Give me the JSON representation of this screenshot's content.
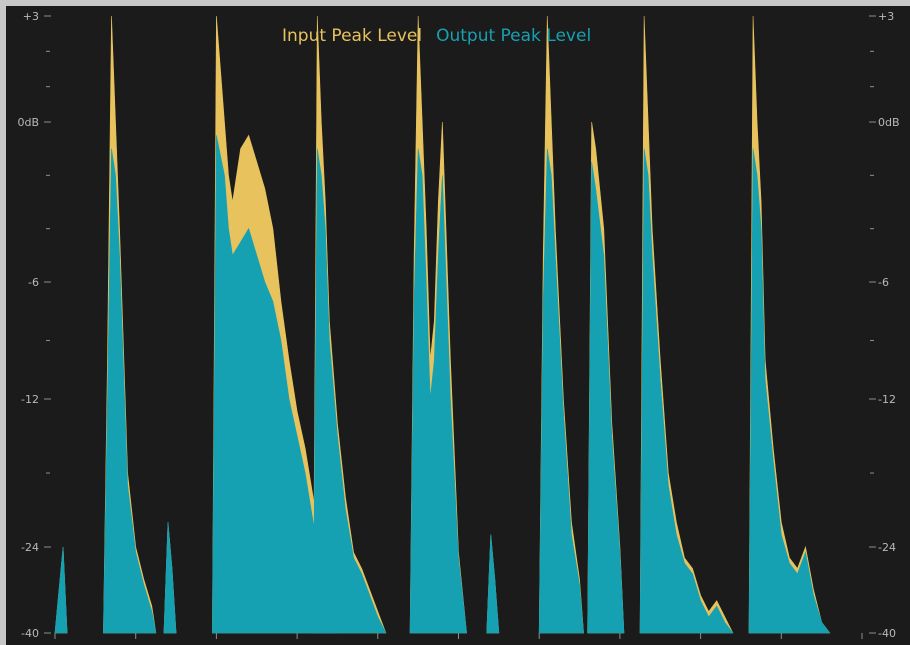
{
  "colors": {
    "background": "#1b1b1b",
    "frame": "#c8c8c8",
    "input": "#e8c25c",
    "output": "#16a1b3",
    "scale_text": "#b9b9b9"
  },
  "legend": {
    "input_label": "Input Peak Level",
    "output_label": "Output Peak Level"
  },
  "chart_data": {
    "type": "area",
    "ylabel": "",
    "xlabel": "",
    "ylim": [
      -40,
      3
    ],
    "y_scale": "meter",
    "yticks": [
      {
        "value": 3,
        "label": "+3"
      },
      {
        "value": 0,
        "label": "0dB"
      },
      {
        "value": -6,
        "label": "-6"
      },
      {
        "value": -12,
        "label": "-12"
      },
      {
        "value": -24,
        "label": "-24"
      },
      {
        "value": -40,
        "label": "-40"
      }
    ],
    "series": [
      {
        "name": "Input Peak Level",
        "color": "#e8c25c",
        "points": [
          [
            0.0,
            -40
          ],
          [
            0.01,
            -24
          ],
          [
            0.015,
            -40
          ],
          [
            0.06,
            -40
          ],
          [
            0.065,
            -10
          ],
          [
            0.07,
            3
          ],
          [
            0.075,
            0
          ],
          [
            0.08,
            -4
          ],
          [
            0.09,
            -18
          ],
          [
            0.1,
            -24
          ],
          [
            0.11,
            -30
          ],
          [
            0.12,
            -35
          ],
          [
            0.125,
            -40
          ],
          [
            0.135,
            -40
          ],
          [
            0.14,
            -22
          ],
          [
            0.145,
            -28
          ],
          [
            0.15,
            -40
          ],
          [
            0.195,
            -40
          ],
          [
            0.2,
            3
          ],
          [
            0.21,
            0
          ],
          [
            0.215,
            -2
          ],
          [
            0.22,
            -3
          ],
          [
            0.23,
            -1
          ],
          [
            0.24,
            -0.5
          ],
          [
            0.25,
            -1.5
          ],
          [
            0.26,
            -2.5
          ],
          [
            0.27,
            -4
          ],
          [
            0.28,
            -7
          ],
          [
            0.29,
            -10
          ],
          [
            0.3,
            -13
          ],
          [
            0.31,
            -16
          ],
          [
            0.32,
            -20
          ],
          [
            0.33,
            -25
          ],
          [
            0.34,
            -30
          ],
          [
            0.35,
            -40
          ],
          [
            0.32,
            -40
          ],
          [
            0.325,
            3
          ],
          [
            0.33,
            0
          ],
          [
            0.335,
            -3
          ],
          [
            0.34,
            -8
          ],
          [
            0.35,
            -14
          ],
          [
            0.36,
            -20
          ],
          [
            0.37,
            -25
          ],
          [
            0.38,
            -28
          ],
          [
            0.39,
            -32
          ],
          [
            0.4,
            -36
          ],
          [
            0.41,
            -40
          ],
          [
            0.44,
            -40
          ],
          [
            0.445,
            -5
          ],
          [
            0.45,
            3
          ],
          [
            0.455,
            0
          ],
          [
            0.46,
            -4
          ],
          [
            0.465,
            -10
          ],
          [
            0.47,
            -8
          ],
          [
            0.475,
            -3
          ],
          [
            0.48,
            0
          ],
          [
            0.49,
            -10
          ],
          [
            0.5,
            -25
          ],
          [
            0.51,
            -40
          ],
          [
            0.535,
            -40
          ],
          [
            0.54,
            -23
          ],
          [
            0.545,
            -30
          ],
          [
            0.55,
            -40
          ],
          [
            0.6,
            -40
          ],
          [
            0.605,
            -5
          ],
          [
            0.61,
            3
          ],
          [
            0.615,
            0
          ],
          [
            0.62,
            -4
          ],
          [
            0.63,
            -12
          ],
          [
            0.64,
            -22
          ],
          [
            0.65,
            -30
          ],
          [
            0.655,
            -40
          ],
          [
            0.66,
            -40
          ],
          [
            0.665,
            0
          ],
          [
            0.67,
            -1
          ],
          [
            0.68,
            -4
          ],
          [
            0.69,
            -14
          ],
          [
            0.7,
            -24
          ],
          [
            0.705,
            -40
          ],
          [
            0.725,
            -40
          ],
          [
            0.73,
            3
          ],
          [
            0.735,
            0
          ],
          [
            0.74,
            -4
          ],
          [
            0.75,
            -10
          ],
          [
            0.76,
            -18
          ],
          [
            0.77,
            -22
          ],
          [
            0.78,
            -26
          ],
          [
            0.79,
            -28
          ],
          [
            0.8,
            -33
          ],
          [
            0.81,
            -36
          ],
          [
            0.82,
            -34
          ],
          [
            0.83,
            -37
          ],
          [
            0.84,
            -40
          ],
          [
            0.86,
            -40
          ],
          [
            0.865,
            3
          ],
          [
            0.87,
            0
          ],
          [
            0.875,
            -3
          ],
          [
            0.88,
            -10
          ],
          [
            0.89,
            -16
          ],
          [
            0.9,
            -22
          ],
          [
            0.91,
            -26
          ],
          [
            0.92,
            -28
          ],
          [
            0.93,
            -24
          ],
          [
            0.94,
            -32
          ],
          [
            0.95,
            -38
          ],
          [
            0.96,
            -40
          ]
        ]
      },
      {
        "name": "Output Peak Level",
        "color": "#16a1b3",
        "points": [
          [
            0.0,
            -40
          ],
          [
            0.01,
            -24
          ],
          [
            0.015,
            -40
          ],
          [
            0.06,
            -40
          ],
          [
            0.065,
            -12
          ],
          [
            0.07,
            -1
          ],
          [
            0.075,
            -2
          ],
          [
            0.08,
            -5
          ],
          [
            0.09,
            -19
          ],
          [
            0.1,
            -25
          ],
          [
            0.11,
            -31
          ],
          [
            0.12,
            -36
          ],
          [
            0.125,
            -40
          ],
          [
            0.135,
            -40
          ],
          [
            0.14,
            -22
          ],
          [
            0.145,
            -28
          ],
          [
            0.15,
            -40
          ],
          [
            0.195,
            -40
          ],
          [
            0.2,
            -0.5
          ],
          [
            0.21,
            -2
          ],
          [
            0.215,
            -4
          ],
          [
            0.22,
            -5
          ],
          [
            0.23,
            -4.5
          ],
          [
            0.24,
            -4
          ],
          [
            0.25,
            -5
          ],
          [
            0.26,
            -6
          ],
          [
            0.27,
            -7
          ],
          [
            0.28,
            -9
          ],
          [
            0.29,
            -12
          ],
          [
            0.3,
            -15
          ],
          [
            0.31,
            -18
          ],
          [
            0.32,
            -22
          ],
          [
            0.33,
            -26
          ],
          [
            0.34,
            -31
          ],
          [
            0.35,
            -40
          ],
          [
            0.32,
            -40
          ],
          [
            0.325,
            -1
          ],
          [
            0.33,
            -2
          ],
          [
            0.335,
            -4
          ],
          [
            0.34,
            -9
          ],
          [
            0.35,
            -15
          ],
          [
            0.36,
            -21
          ],
          [
            0.37,
            -26
          ],
          [
            0.38,
            -29
          ],
          [
            0.39,
            -33
          ],
          [
            0.4,
            -37
          ],
          [
            0.41,
            -40
          ],
          [
            0.44,
            -40
          ],
          [
            0.445,
            -7
          ],
          [
            0.45,
            -1
          ],
          [
            0.455,
            -2
          ],
          [
            0.46,
            -6
          ],
          [
            0.465,
            -12
          ],
          [
            0.47,
            -10
          ],
          [
            0.475,
            -5
          ],
          [
            0.48,
            -2
          ],
          [
            0.49,
            -12
          ],
          [
            0.5,
            -26
          ],
          [
            0.51,
            -40
          ],
          [
            0.535,
            -40
          ],
          [
            0.54,
            -23
          ],
          [
            0.545,
            -30
          ],
          [
            0.55,
            -40
          ],
          [
            0.6,
            -40
          ],
          [
            0.605,
            -7
          ],
          [
            0.61,
            -1
          ],
          [
            0.615,
            -2
          ],
          [
            0.62,
            -5
          ],
          [
            0.63,
            -13
          ],
          [
            0.64,
            -23
          ],
          [
            0.65,
            -31
          ],
          [
            0.655,
            -40
          ],
          [
            0.66,
            -40
          ],
          [
            0.665,
            -1.5
          ],
          [
            0.67,
            -2.5
          ],
          [
            0.68,
            -5
          ],
          [
            0.69,
            -15
          ],
          [
            0.7,
            -25
          ],
          [
            0.705,
            -40
          ],
          [
            0.725,
            -40
          ],
          [
            0.73,
            -1
          ],
          [
            0.735,
            -2
          ],
          [
            0.74,
            -5
          ],
          [
            0.75,
            -11
          ],
          [
            0.76,
            -19
          ],
          [
            0.77,
            -23
          ],
          [
            0.78,
            -27
          ],
          [
            0.79,
            -29
          ],
          [
            0.8,
            -34
          ],
          [
            0.81,
            -37
          ],
          [
            0.82,
            -35
          ],
          [
            0.83,
            -38
          ],
          [
            0.84,
            -40
          ],
          [
            0.86,
            -40
          ],
          [
            0.865,
            -1
          ],
          [
            0.87,
            -2
          ],
          [
            0.875,
            -4
          ],
          [
            0.88,
            -11
          ],
          [
            0.89,
            -17
          ],
          [
            0.9,
            -23
          ],
          [
            0.91,
            -27
          ],
          [
            0.92,
            -29
          ],
          [
            0.93,
            -25
          ],
          [
            0.94,
            -33
          ],
          [
            0.95,
            -38
          ],
          [
            0.96,
            -40
          ]
        ]
      }
    ]
  }
}
